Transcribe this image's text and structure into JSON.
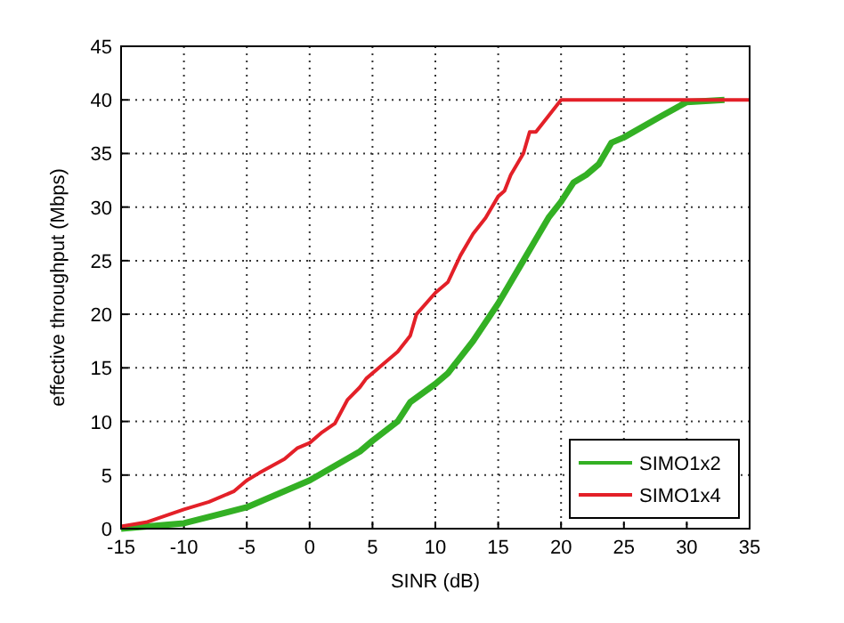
{
  "chart_data": {
    "type": "line",
    "xlabel": "SINR (dB)",
    "ylabel": "effective throughput (Mbps)",
    "xlim": [
      -15,
      35
    ],
    "xticks": [
      -15,
      -10,
      -5,
      0,
      5,
      10,
      15,
      20,
      25,
      30,
      35
    ],
    "ylim": [
      0,
      45
    ],
    "yticks": [
      0,
      5,
      10,
      15,
      20,
      25,
      30,
      35,
      40,
      45
    ],
    "grid": true,
    "legend": "bottom right",
    "series": [
      {
        "name": "SIMO1x2",
        "color": "#33b024",
        "x": [
          -15,
          -10,
          -5,
          0,
          4,
          5,
          7,
          8,
          10,
          11,
          13,
          15,
          17,
          18,
          19,
          20,
          21,
          22,
          23,
          24,
          25,
          28,
          30,
          33
        ],
        "values": [
          0,
          0.5,
          2,
          4.5,
          7.2,
          8.2,
          10,
          11.8,
          13.5,
          14.5,
          17.5,
          21,
          25,
          27,
          29,
          30.5,
          32.3,
          33,
          34,
          36,
          36.5,
          38.5,
          39.8,
          40
        ]
      },
      {
        "name": "SIMO1x4",
        "color": "#e32028",
        "x": [
          -15,
          -13,
          -10,
          -8,
          -6,
          -5,
          -4,
          -2,
          -1,
          0,
          1,
          2,
          3,
          4,
          4.5,
          6,
          7,
          8,
          8.5,
          10,
          11,
          12,
          13,
          14,
          15,
          15.5,
          16,
          17,
          17.5,
          18,
          19,
          20,
          35
        ],
        "values": [
          0.2,
          0.6,
          1.8,
          2.5,
          3.5,
          4.5,
          5.2,
          6.5,
          7.5,
          8,
          9,
          9.8,
          12,
          13.2,
          14,
          15.5,
          16.5,
          18,
          20,
          22,
          23,
          25.5,
          27.5,
          29,
          31,
          31.5,
          33,
          35,
          37,
          37,
          38.5,
          40,
          40
        ]
      }
    ]
  }
}
